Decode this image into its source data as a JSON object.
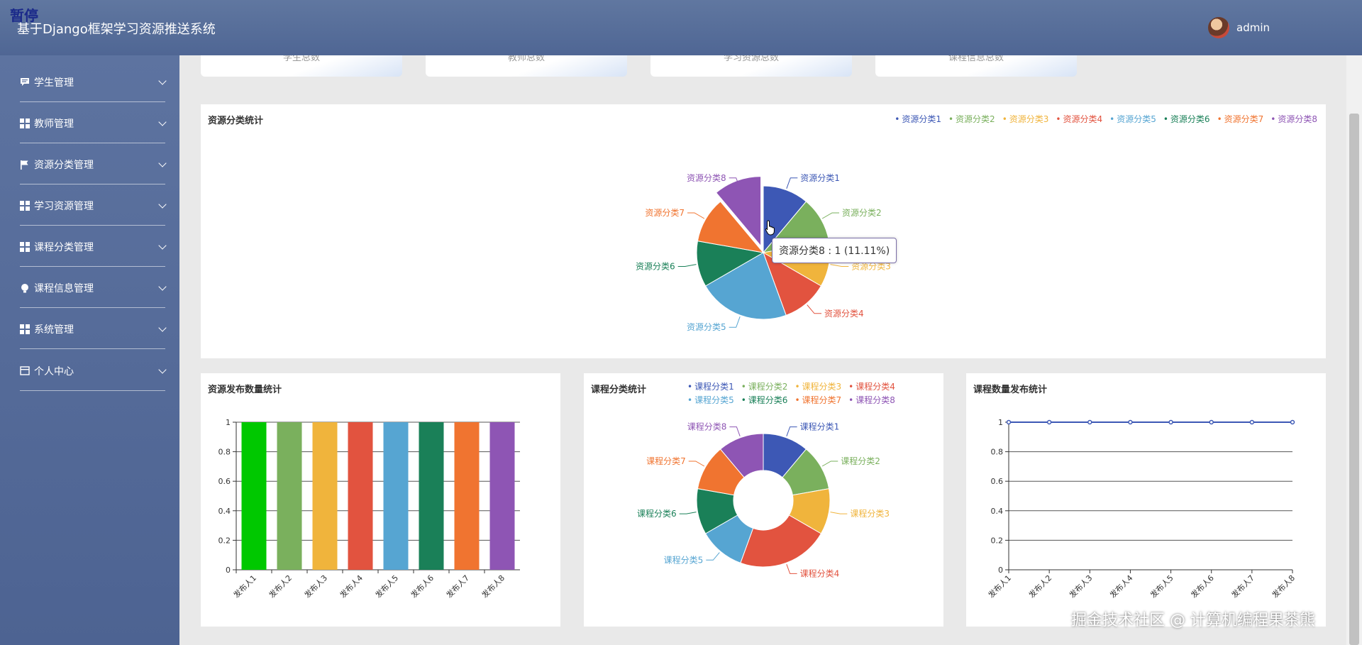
{
  "header": {
    "pause_label": "暂停",
    "app_title": "基于Django框架学习资源推送系统",
    "username": "admin"
  },
  "sidebar": {
    "items": [
      {
        "label": "学生管理",
        "icon": "chat-icon"
      },
      {
        "label": "教师管理",
        "icon": "grid-icon"
      },
      {
        "label": "资源分类管理",
        "icon": "flag-icon"
      },
      {
        "label": "学习资源管理",
        "icon": "grid-icon"
      },
      {
        "label": "课程分类管理",
        "icon": "grid-icon"
      },
      {
        "label": "课程信息管理",
        "icon": "bulb-icon"
      },
      {
        "label": "系统管理",
        "icon": "grid-icon"
      },
      {
        "label": "个人中心",
        "icon": "card-icon"
      }
    ]
  },
  "stat_cards": [
    "学生总数",
    "教师总数",
    "学习资源总数",
    "课程信息总数"
  ],
  "colors": [
    "#3d58b5",
    "#7ab05d",
    "#f0b43c",
    "#e2533f",
    "#56a5d2",
    "#1a8058",
    "#f07430",
    "#8e55b4"
  ],
  "tooltip": "资源分类8 : 1 (11.11%)",
  "watermark": "掘金技术社区 @ 计算机编程果茶熊",
  "chart_data": [
    {
      "type": "pie",
      "title": "资源分类统计",
      "categories": [
        "资源分类1",
        "资源分类2",
        "资源分类3",
        "资源分类4",
        "资源分类5",
        "资源分类6",
        "资源分类7",
        "资源分类8"
      ],
      "values": [
        1,
        1,
        1,
        1,
        2,
        1,
        1,
        1
      ],
      "legend": "top-right"
    },
    {
      "type": "bar",
      "title": "资源发布数量统计",
      "categories": [
        "发布人1",
        "发布人2",
        "发布人3",
        "发布人4",
        "发布人5",
        "发布人6",
        "发布人7",
        "发布人8"
      ],
      "values": [
        1,
        1,
        1,
        1,
        1,
        1,
        1,
        1
      ],
      "bar_colors": [
        "#00c800",
        "#7ab05d",
        "#f0b43c",
        "#e2533f",
        "#56a5d2",
        "#1a8058",
        "#f07430",
        "#8e55b4"
      ],
      "yticks": [
        "0",
        "0.2",
        "0.4",
        "0.6",
        "0.8",
        "1"
      ],
      "ylim": [
        0,
        1
      ],
      "grid": true
    },
    {
      "type": "pie",
      "subtype": "donut",
      "title": "课程分类统计",
      "categories": [
        "课程分类1",
        "课程分类2",
        "课程分类3",
        "课程分类4",
        "课程分类5",
        "课程分类6",
        "课程分类7",
        "课程分类8"
      ],
      "values": [
        1,
        1,
        1,
        2,
        1,
        1,
        1,
        1
      ],
      "legend": "top-right"
    },
    {
      "type": "line",
      "title": "课程数量发布统计",
      "categories": [
        "发布人1",
        "发布人2",
        "发布人3",
        "发布人4",
        "发布人5",
        "发布人6",
        "发布人7",
        "发布人8"
      ],
      "values": [
        1,
        1,
        1,
        1,
        1,
        1,
        1,
        1
      ],
      "yticks": [
        "0",
        "0.2",
        "0.4",
        "0.6",
        "0.8",
        "1"
      ],
      "ylim": [
        0,
        1
      ],
      "grid": true
    }
  ]
}
